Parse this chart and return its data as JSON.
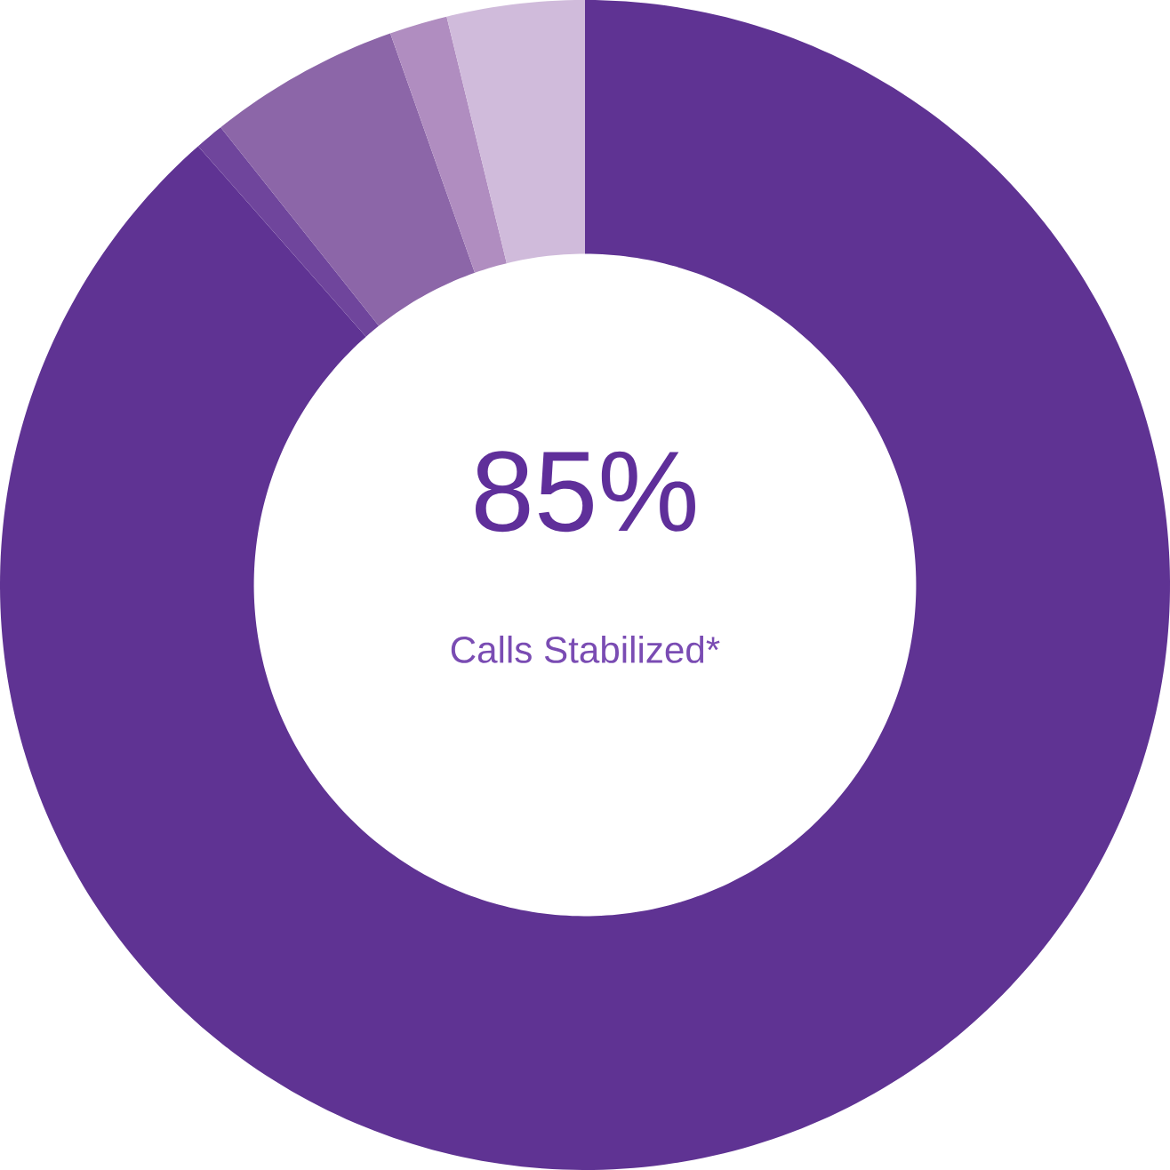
{
  "chart_data": {
    "type": "donut",
    "categories": [
      null,
      null,
      null,
      null,
      null
    ],
    "values": [
      88.5,
      0.8,
      5.3,
      1.6,
      3.8
    ],
    "colors": [
      "#5f3393",
      "#6f459c",
      "#8c66a8",
      "#b08dc0",
      "#d0bbdb"
    ],
    "annotations": [
      "85%",
      "Calls Stabilized*"
    ]
  }
}
